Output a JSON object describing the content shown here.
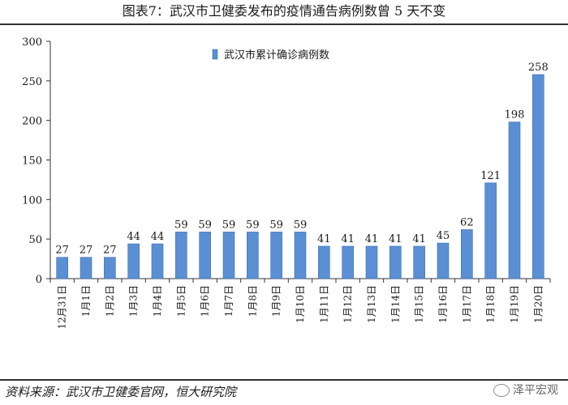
{
  "header": {
    "title": "图表7：武汉市卫健委发布的疫情通告病例数曾 5 天不变"
  },
  "footer": {
    "source": "资料来源：武汉市卫健委官网，恒大研究院",
    "watermark": "泽平宏观"
  },
  "colors": {
    "bar": "#5b8fd3",
    "bar_edge": "#3f6fb0",
    "axis": "#333333"
  },
  "chart_data": {
    "type": "bar",
    "title": "",
    "xlabel": "",
    "ylabel": "",
    "ylim": [
      0,
      300
    ],
    "yticks": [
      0,
      50,
      100,
      150,
      200,
      250,
      300
    ],
    "grid": false,
    "legend_position": "top-left",
    "categories": [
      "12月31日",
      "1月1日",
      "1月2日",
      "1月3日",
      "1月4日",
      "1月5日",
      "1月6日",
      "1月7日",
      "1月8日",
      "1月9日",
      "1月10日",
      "1月11日",
      "1月12日",
      "1月13日",
      "1月14日",
      "1月15日",
      "1月16日",
      "1月17日",
      "1月18日",
      "1月19日",
      "1月20日"
    ],
    "series": [
      {
        "name": "武汉市累计确诊病例数",
        "values": [
          27,
          27,
          27,
          44,
          44,
          59,
          59,
          59,
          59,
          59,
          59,
          41,
          41,
          41,
          41,
          41,
          45,
          62,
          121,
          198,
          258
        ]
      }
    ]
  }
}
